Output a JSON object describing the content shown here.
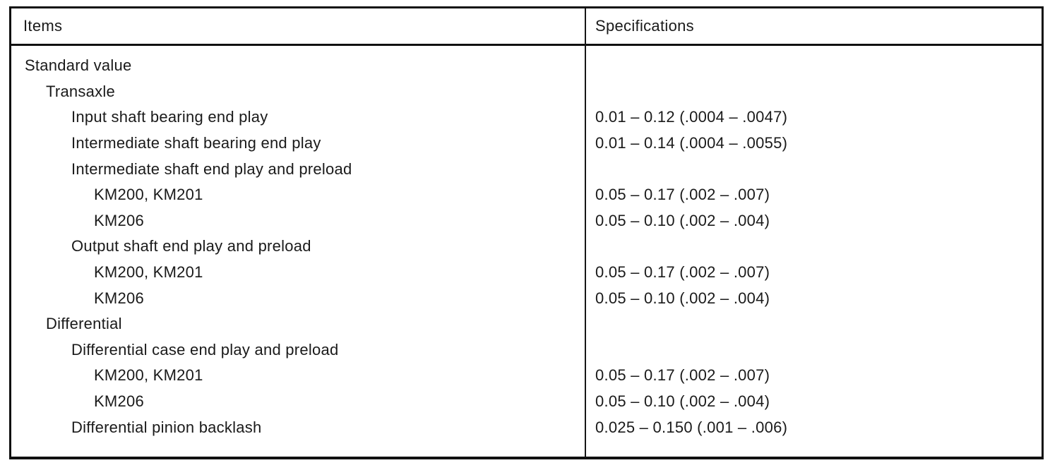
{
  "table": {
    "columns": [
      "Items",
      "Specifications"
    ],
    "rows": [
      {
        "item": "Standard value",
        "indent": 0,
        "spec": ""
      },
      {
        "item": "Transaxle",
        "indent": 1,
        "spec": ""
      },
      {
        "item": "Input shaft bearing end play",
        "indent": 2,
        "spec": "0.01 – 0.12 (.0004 – .0047)"
      },
      {
        "item": "Intermediate shaft bearing end play",
        "indent": 2,
        "spec": "0.01 – 0.14 (.0004 – .0055)"
      },
      {
        "item": "Intermediate shaft end play and preload",
        "indent": 2,
        "spec": ""
      },
      {
        "item": "KM200, KM201",
        "indent": 3,
        "spec": "0.05 – 0.17 (.002 – .007)"
      },
      {
        "item": "KM206",
        "indent": 3,
        "spec": "0.05 – 0.10 (.002 – .004)"
      },
      {
        "item": "Output shaft end play and preload",
        "indent": 2,
        "spec": ""
      },
      {
        "item": "KM200, KM201",
        "indent": 3,
        "spec": "0.05 – 0.17 (.002 – .007)"
      },
      {
        "item": "KM206",
        "indent": 3,
        "spec": "0.05 – 0.10 (.002 – .004)"
      },
      {
        "item": "Differential",
        "indent": 1,
        "spec": ""
      },
      {
        "item": "Differential case end play and preload",
        "indent": 2,
        "spec": ""
      },
      {
        "item": "KM200, KM201",
        "indent": 3,
        "spec": "0.05 – 0.17 (.002 – .007)"
      },
      {
        "item": "KM206",
        "indent": 3,
        "spec": "0.05 – 0.10 (.002 – .004)"
      },
      {
        "item": "Differential pinion backlash",
        "indent": 2,
        "spec": "0.025 – 0.150 (.001 – .006)"
      }
    ]
  }
}
